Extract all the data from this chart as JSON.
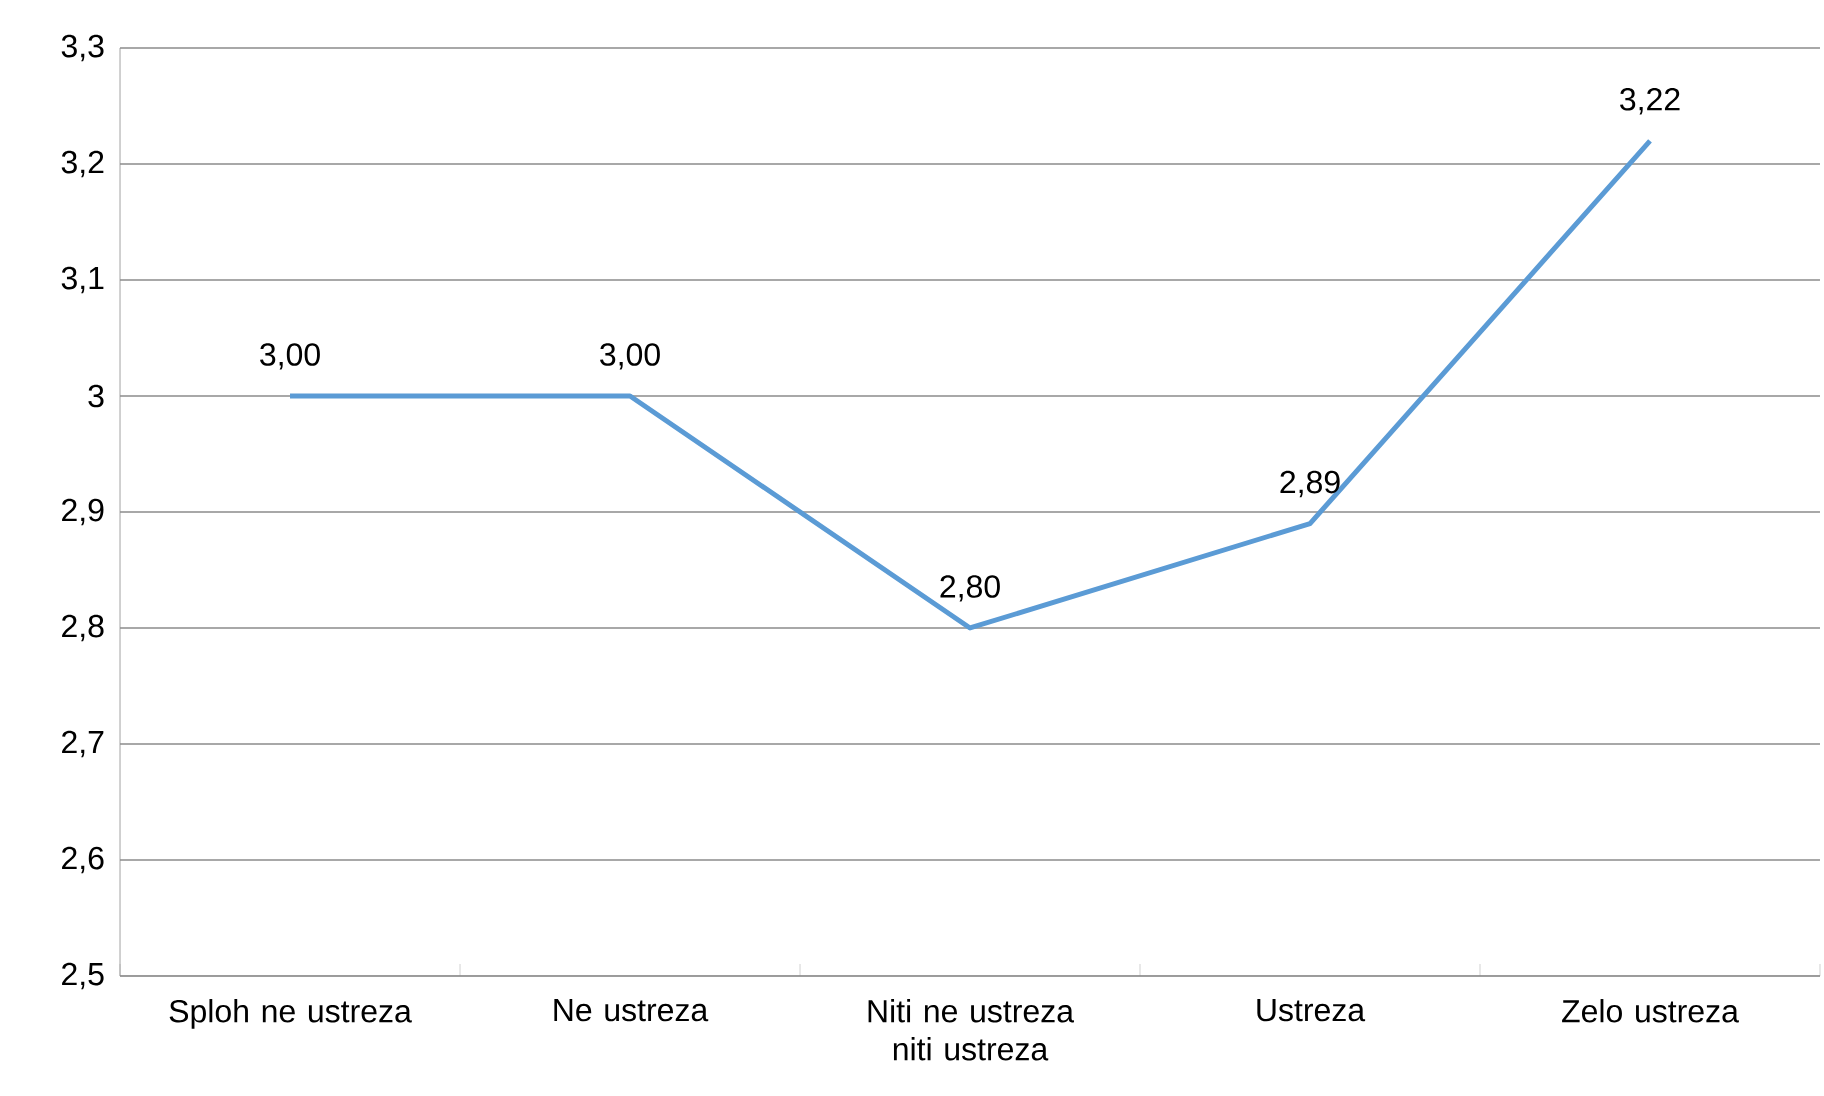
{
  "chart_data": {
    "type": "line",
    "categories": [
      "Sploh ne ustreza",
      "Ne ustreza",
      "Niti ne ustreza niti ustreza",
      "Ustreza",
      "Zelo ustreza"
    ],
    "series": [
      {
        "color": "#5b9bd5",
        "values": [
          3.0,
          3.0,
          2.8,
          2.89,
          3.22
        ],
        "value_labels": [
          "3,00",
          "3,00",
          "2,80",
          "2,89",
          "3,22"
        ]
      }
    ],
    "ylim": [
      2.5,
      3.3
    ],
    "yticks": [
      {
        "value": 2.5,
        "label": "2,5"
      },
      {
        "value": 2.6,
        "label": "2,6"
      },
      {
        "value": 2.7,
        "label": "2,7"
      },
      {
        "value": 2.8,
        "label": "2,8"
      },
      {
        "value": 2.9,
        "label": "2,9"
      },
      3,
      {
        "value": 3.1,
        "label": "3,1"
      },
      {
        "value": 3.2,
        "label": "3,2"
      },
      {
        "value": 3.3,
        "label": "3,3"
      }
    ],
    "grid": "y"
  }
}
